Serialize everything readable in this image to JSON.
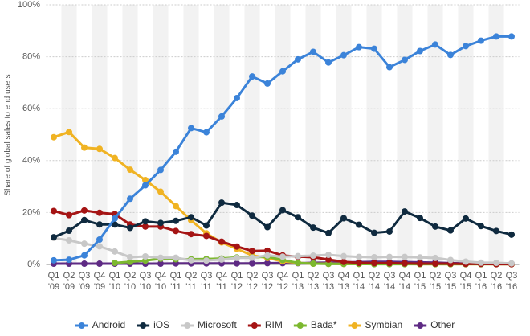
{
  "chart_data": {
    "type": "line",
    "y_label": "Share of global sales to end users",
    "categories": [
      "Q1 '09",
      "Q2 '09",
      "Q3 '09",
      "Q4 '09",
      "Q1 '10",
      "Q2 '10",
      "Q3 '10",
      "Q4 '10",
      "Q1 '11",
      "Q2 '11",
      "Q3 '11",
      "Q4 '11",
      "Q1 '12",
      "Q2 '12",
      "Q3 '12",
      "Q4 '12",
      "Q1 '13",
      "Q2 '13",
      "Q3 '13",
      "Q4 '13",
      "Q1 '14",
      "Q2 '14",
      "Q3 '14",
      "Q4 '14",
      "Q1 '15",
      "Q2 '15",
      "Q3 '15",
      "Q4 '15",
      "Q1 '16",
      "Q2 '16",
      "Q3 '16"
    ],
    "series": [
      {
        "name": "Android",
        "color": "#3b83d9",
        "values": [
          1.6,
          1.8,
          3.5,
          9.6,
          17.7,
          25.3,
          30.5,
          36.4,
          43.4,
          52.5,
          50.9,
          57.0,
          64.1,
          72.4,
          69.7,
          74.4,
          79.0,
          81.9,
          77.8,
          80.6,
          83.7,
          83.1,
          76.0,
          78.8,
          82.2,
          84.7,
          80.7,
          84.1,
          86.2,
          87.8,
          87.8
        ]
      },
      {
        "name": "iOS",
        "color": "#0f2a3f",
        "values": [
          10.5,
          13.0,
          17.1,
          15.4,
          15.4,
          14.1,
          16.6,
          16.0,
          16.8,
          18.2,
          15.0,
          23.8,
          22.9,
          18.8,
          14.4,
          20.9,
          18.2,
          14.2,
          12.1,
          17.8,
          15.3,
          12.2,
          12.7,
          20.4,
          17.9,
          14.6,
          13.1,
          17.7,
          14.8,
          12.9,
          11.5
        ]
      },
      {
        "name": "Microsoft",
        "color": "#c8c8c8",
        "values": [
          10.2,
          9.3,
          8.0,
          7.0,
          5.0,
          2.8,
          3.1,
          2.6,
          2.6,
          1.6,
          1.5,
          1.9,
          2.5,
          2.6,
          3.5,
          3.0,
          3.2,
          3.4,
          3.7,
          3.2,
          2.9,
          2.8,
          2.9,
          2.9,
          2.7,
          2.5,
          1.7,
          1.1,
          0.7,
          0.6,
          0.4
        ]
      },
      {
        "name": "RIM",
        "color": "#a51414",
        "values": [
          20.6,
          19.0,
          20.8,
          19.9,
          19.4,
          15.4,
          14.6,
          14.6,
          12.9,
          11.7,
          11.0,
          8.8,
          6.9,
          5.2,
          5.3,
          3.5,
          3.0,
          2.8,
          1.9,
          1.0,
          0.6,
          0.5,
          0.5,
          0.4,
          0.3,
          0.3,
          0.3,
          0.2,
          0.2,
          0.1,
          0.1
        ]
      },
      {
        "name": "Bada*",
        "color": "#7cb82f",
        "values": [
          null,
          null,
          null,
          null,
          0.6,
          1.0,
          1.5,
          2.2,
          2.0,
          2.0,
          2.1,
          2.3,
          2.7,
          2.7,
          3.0,
          1.7,
          0.6,
          0.3,
          0.2,
          0.2,
          0.2,
          0.1,
          0.1,
          0.1,
          0.1,
          0.1,
          0.1,
          0.1,
          0.1,
          0.1,
          0.1
        ]
      },
      {
        "name": "Symbian",
        "color": "#f0b323",
        "values": [
          49.0,
          51.0,
          45.0,
          44.5,
          41.0,
          36.5,
          32.5,
          28.0,
          22.5,
          17.0,
          12.0,
          8.5,
          6.0,
          3.5,
          2.5,
          1.2,
          0.6,
          0.3,
          0.3,
          0.2,
          0.2,
          0.2,
          0.2,
          0.2,
          0.1,
          0.1,
          0.1,
          0.1,
          0.1,
          0.1,
          0.1
        ]
      },
      {
        "name": "Other",
        "color": "#5e2a84",
        "values": [
          0.3,
          0.3,
          0.3,
          0.3,
          0.3,
          0.3,
          0.3,
          0.3,
          0.4,
          0.4,
          0.4,
          0.4,
          0.4,
          0.4,
          0.5,
          0.5,
          0.5,
          0.6,
          0.7,
          0.8,
          0.9,
          1.0,
          1.0,
          0.9,
          0.8,
          0.7,
          0.5,
          0.4,
          0.3,
          0.3,
          0.3
        ]
      }
    ],
    "ylim": [
      0,
      100
    ],
    "yticks": [
      {
        "value": 0,
        "label": "0%"
      },
      {
        "value": 20,
        "label": "20%"
      },
      {
        "value": 40,
        "label": "40%"
      },
      {
        "value": 60,
        "label": "60%"
      },
      {
        "value": 80,
        "label": "80%"
      },
      {
        "value": 100,
        "label": "100%"
      }
    ],
    "grid": true,
    "legend": "bottom"
  }
}
